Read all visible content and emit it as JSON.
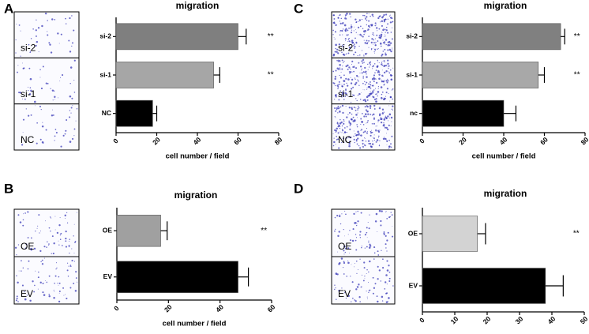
{
  "chart_data": [
    {
      "type": "bar",
      "panel": "A",
      "title": "migration",
      "categories": [
        "si-2",
        "si-1",
        "NC"
      ],
      "values": [
        60,
        48,
        18
      ],
      "errors": [
        4,
        3,
        2
      ],
      "colors": [
        "#7f7f7f",
        "#a6a6a6",
        "#000000"
      ],
      "annotations": [
        "**",
        "**",
        null
      ],
      "xlim": [
        0,
        80
      ],
      "xticks": [
        0,
        20,
        40,
        60,
        80
      ],
      "xlabel": "cell number / field",
      "image_labels": [
        "si-2",
        "si-1",
        "NC"
      ]
    },
    {
      "type": "bar",
      "panel": "B",
      "title": "migration",
      "categories": [
        "OE",
        "EV"
      ],
      "values": [
        17,
        47
      ],
      "errors": [
        2.5,
        4
      ],
      "colors": [
        "#a0a0a0",
        "#000000"
      ],
      "annotations": [
        "**",
        null
      ],
      "xlim": [
        0,
        60
      ],
      "xticks": [
        0,
        20,
        40,
        60
      ],
      "xlabel": "cell number / field",
      "image_labels": [
        "OE",
        "EV"
      ]
    },
    {
      "type": "bar",
      "panel": "C",
      "title": "migration",
      "categories": [
        "si-2",
        "si-1",
        "nc"
      ],
      "values": [
        68,
        57,
        40
      ],
      "errors": [
        2,
        3,
        6
      ],
      "colors": [
        "#808080",
        "#a8a8a8",
        "#000000"
      ],
      "annotations": [
        "**",
        "**",
        null
      ],
      "xlim": [
        0,
        80
      ],
      "xticks": [
        0,
        20,
        40,
        60,
        80
      ],
      "xlabel": "cell number / field",
      "image_labels": [
        "si-2",
        "si-1",
        "NC"
      ]
    },
    {
      "type": "bar",
      "panel": "D",
      "title": "migration",
      "categories": [
        "OE",
        "EV"
      ],
      "values": [
        17,
        38
      ],
      "errors": [
        2.5,
        5.5
      ],
      "colors": [
        "#d3d3d3",
        "#000000"
      ],
      "annotations": [
        "**",
        null
      ],
      "xlim": [
        0,
        50
      ],
      "xticks": [
        0,
        10,
        20,
        30,
        40,
        50
      ],
      "image_labels": [
        "OE",
        "EV"
      ]
    }
  ]
}
